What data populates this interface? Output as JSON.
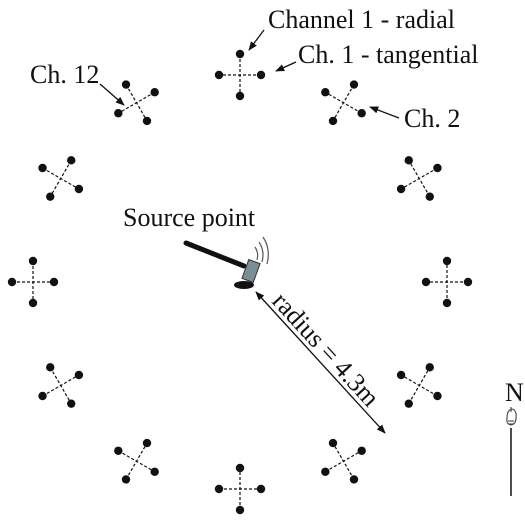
{
  "labels": {
    "channel_1_radial": "Channel 1 - radial",
    "channel_1_tangential": "Ch. 1 - tangential",
    "channel_2": "Ch. 2",
    "channel_12": "Ch. 12",
    "source_point": "Source point",
    "radius": "radius = 4.3m",
    "north": "N"
  },
  "sensor_array": {
    "channel_count": 12
  },
  "colors": {
    "ink": "#111111",
    "source_gray": "#7a8e96"
  },
  "icons": {
    "north_marker": "pointing-hand-icon"
  }
}
